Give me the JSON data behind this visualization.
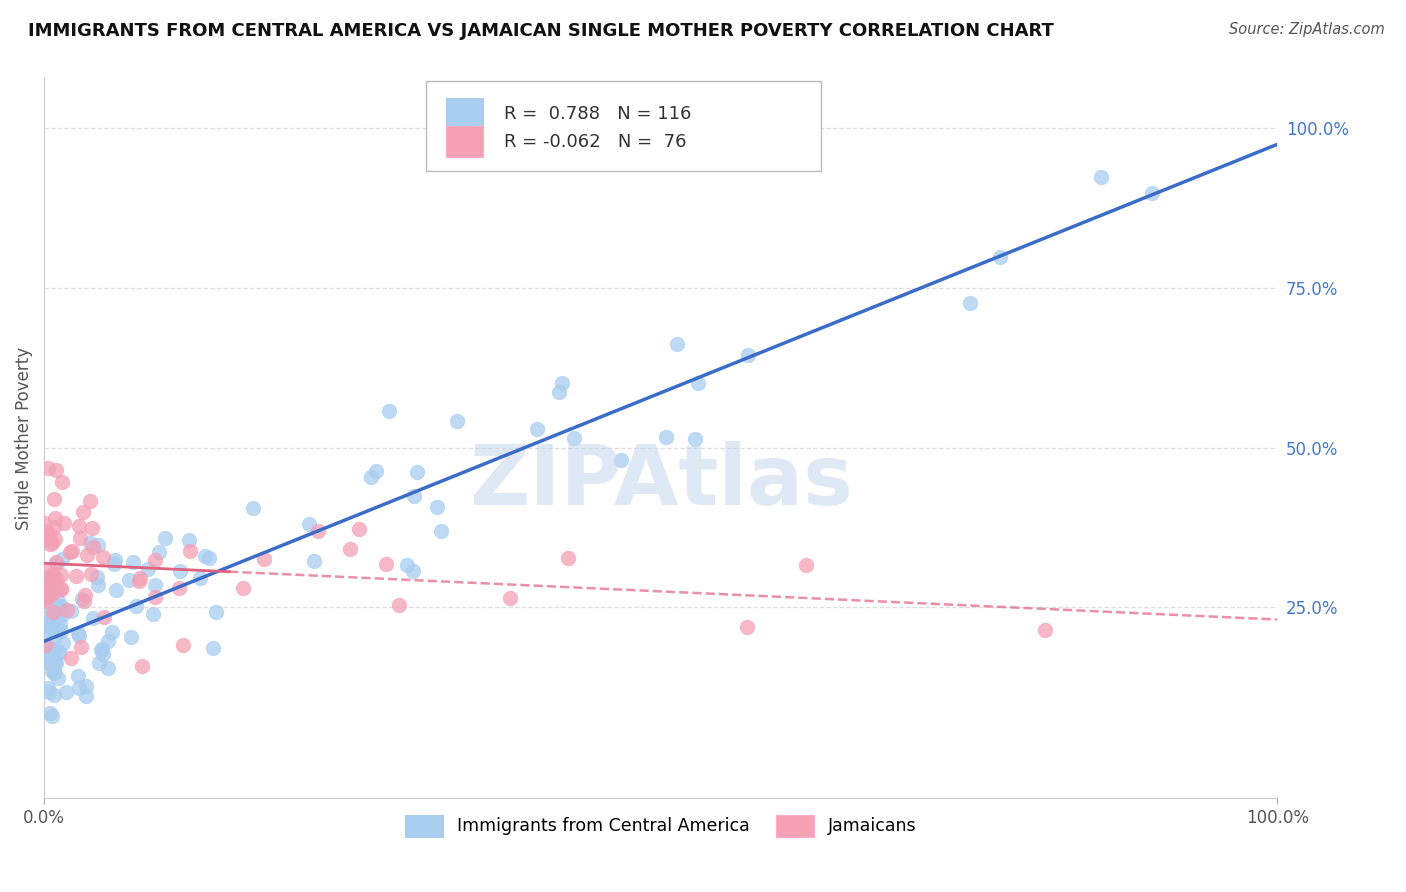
{
  "title": "IMMIGRANTS FROM CENTRAL AMERICA VS JAMAICAN SINGLE MOTHER POVERTY CORRELATION CHART",
  "source": "Source: ZipAtlas.com",
  "ylabel": "Single Mother Poverty",
  "y_ticks": [
    0.25,
    0.5,
    0.75,
    1.0
  ],
  "y_tick_labels": [
    "25.0%",
    "50.0%",
    "75.0%",
    "100.0%"
  ],
  "blue_R": 0.788,
  "blue_N": 116,
  "pink_R": -0.062,
  "pink_N": 76,
  "blue_color": "#A8CDEF",
  "pink_color": "#F4A0B5",
  "blue_line_color": "#3B6CC8",
  "pink_line_color": "#E06080",
  "legend_label_blue": "Immigrants from Central America",
  "legend_label_pink": "Jamaicans",
  "watermark": "ZIPAtlas",
  "watermark_color": "#C5D8EE",
  "background_color": "#FFFFFF",
  "grid_color": "#DDDDDD",
  "xlim": [
    0.0,
    1.0
  ],
  "ylim": [
    -0.05,
    1.08
  ]
}
